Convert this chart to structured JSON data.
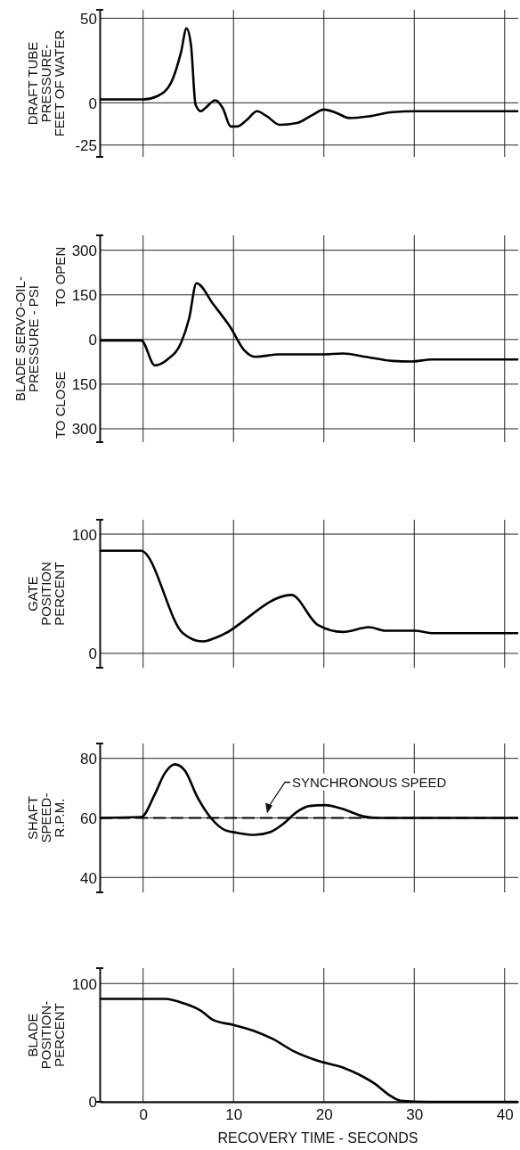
{
  "chart_data": [
    {
      "type": "line",
      "ylabel": "DRAFT TUBE\nPRESSURE-\nFEET OF WATER",
      "xlim": [
        -4.8,
        41.5
      ],
      "xticks": [
        0,
        10,
        20,
        30,
        40
      ],
      "ylim": [
        -32,
        55
      ],
      "yticks": [
        50,
        0,
        -25
      ],
      "grid": true,
      "tick_labels": "y",
      "x": [
        -4.7,
        0,
        1.6,
        3.1,
        4.2,
        4.8,
        5.3,
        5.8,
        6.4,
        6.9,
        8.0,
        8.8,
        9.7,
        10.4,
        11.5,
        12.6,
        13.7,
        15.1,
        17,
        18.8,
        20,
        21.4,
        22.8,
        25,
        27.6,
        30.1,
        41.4
      ],
      "series": [
        {
          "color": "#000000",
          "values": [
            2,
            2,
            4,
            12,
            30,
            44,
            34,
            -1,
            -5,
            -3,
            1.5,
            -3,
            -14,
            -14,
            -10,
            -5,
            -8,
            -13,
            -12,
            -7,
            -4,
            -6,
            -9,
            -8,
            -5.5,
            -5,
            -5
          ]
        }
      ]
    },
    {
      "type": "line",
      "ylabel": "BLADE SERVO-OIL-\nPRESSURE - PSI",
      "annotations": [
        "TO OPEN",
        "TO CLOSE"
      ],
      "xlim": [
        -4.8,
        41.5
      ],
      "xticks": [
        0,
        10,
        20,
        30,
        40
      ],
      "ylim": [
        -345,
        350
      ],
      "yticks": [
        300,
        150,
        0,
        {
          "value": -150,
          "label": "150"
        },
        {
          "value": -300,
          "label": "300"
        }
      ],
      "grid": true,
      "tick_labels": "y",
      "x": [
        -4.7,
        -0.2,
        1.3,
        2.7,
        4.2,
        5.1,
        5.9,
        7.8,
        9.7,
        11.1,
        12.4,
        15.1,
        19.9,
        22.1,
        24.6,
        27.6,
        29.7,
        31.9,
        41.4
      ],
      "series": [
        {
          "color": "#000000",
          "values": [
            -3,
            -3,
            -87,
            -67,
            -11,
            72,
            189,
            117,
            39,
            -33,
            -58,
            -50,
            -50,
            -47,
            -58,
            -72,
            -74,
            -67,
            -67
          ]
        }
      ]
    },
    {
      "type": "line",
      "ylabel": "GATE\nPOSITION\nPERCENT",
      "xlim": [
        -4.8,
        41.5
      ],
      "xticks": [
        0,
        10,
        20,
        30,
        40
      ],
      "ylim": [
        -12,
        112
      ],
      "yticks": [
        100,
        0
      ],
      "grid": true,
      "tick_labels": "y",
      "x": [
        -4.7,
        -0.25,
        4.4,
        6.6,
        8.0,
        16.4,
        19.3,
        22.1,
        25.0,
        26.8,
        30.1,
        31.9,
        41.4
      ],
      "series": [
        {
          "color": "#000000",
          "values": [
            86,
            86,
            17,
            10,
            13,
            49,
            24,
            18,
            22,
            19,
            19,
            17,
            17
          ]
        }
      ]
    },
    {
      "type": "line",
      "ylabel": "SHAFT\nSPEED-\nR.P.M.",
      "ref_lines": [
        {
          "axis": "y",
          "value": 60,
          "label": "SYNCHRONOUS SPEED",
          "line_style": "dashed",
          "color": "#000000"
        }
      ],
      "xlim": [
        -4.8,
        41.5
      ],
      "xticks": [
        0,
        10,
        20,
        30,
        40
      ],
      "ylim": [
        35,
        85
      ],
      "yticks": [
        80,
        60,
        40
      ],
      "grid": true,
      "tick_labels": "y",
      "x": [
        -4.7,
        -0.2,
        1.3,
        2.4,
        3.5,
        4.6,
        6.0,
        7.5,
        9.0,
        10.4,
        12.3,
        14.1,
        15.5,
        17,
        18.4,
        20.1,
        22.1,
        24.3,
        26.1,
        41.4
      ],
      "series": [
        {
          "color": "#000000",
          "values": [
            60,
            60.3,
            68,
            75,
            78,
            76,
            67,
            60,
            56,
            55,
            54.3,
            55.3,
            58,
            62,
            64,
            64.3,
            63,
            60.6,
            60,
            60
          ]
        }
      ]
    },
    {
      "type": "line",
      "ylabel": "BLADE\nPOSITION-\nPERCENT",
      "xlabel": "RECOVERY  TIME  -  SECONDS",
      "xlim": [
        -4.8,
        41.5
      ],
      "xticks": [
        0,
        10,
        20,
        30,
        40
      ],
      "ylim": [
        0,
        113
      ],
      "yticks": [
        100,
        0
      ],
      "grid": true,
      "x": [
        -4.7,
        0,
        2.4,
        4.6,
        6.4,
        7.8,
        10,
        12.6,
        14.4,
        16.6,
        19.2,
        22.1,
        23.9,
        25.7,
        27.2,
        28.5,
        31.6,
        41.4
      ],
      "series": [
        {
          "color": "#000000",
          "values": [
            87,
            87,
            87,
            83,
            77,
            69,
            65,
            59,
            53,
            43,
            35,
            29,
            23,
            15,
            6,
            1,
            0,
            0
          ]
        }
      ]
    }
  ]
}
